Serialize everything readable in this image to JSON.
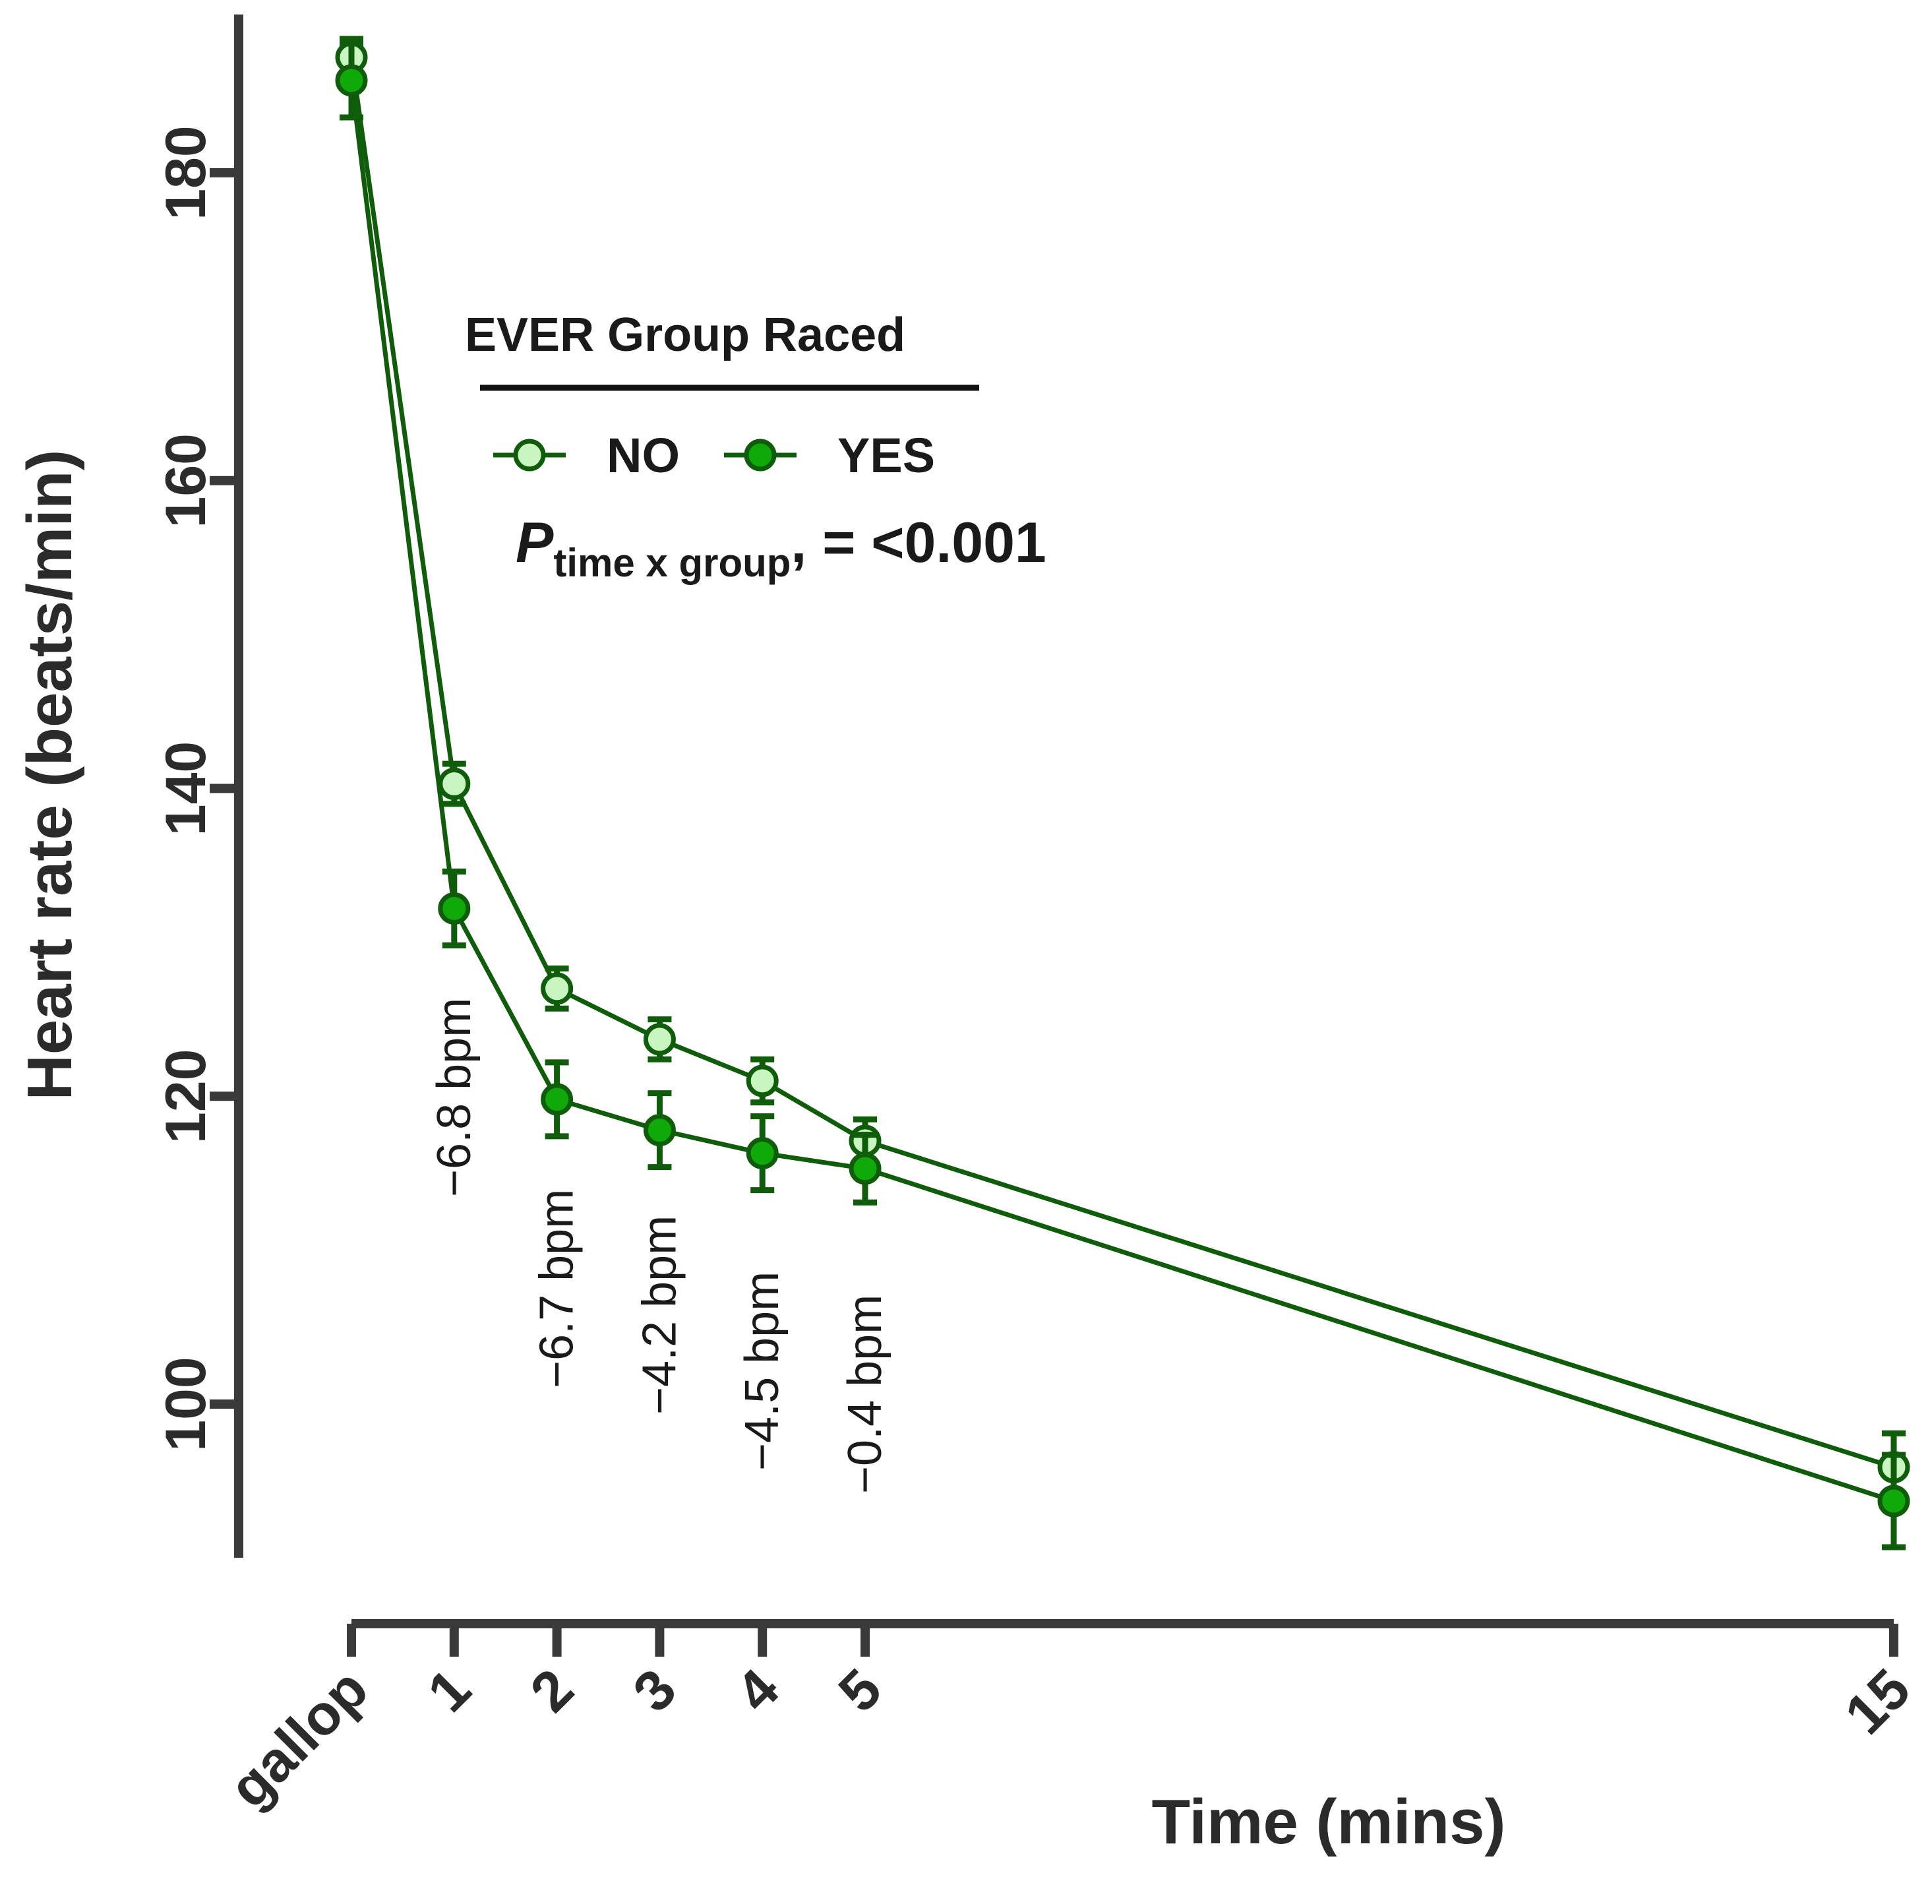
{
  "chart_data": {
    "type": "line",
    "title": "",
    "xlabel": "Time (mins)",
    "ylabel": "Heart rate (beats/min)",
    "categories": [
      "gallop",
      "1",
      "2",
      "3",
      "4",
      "5",
      "15"
    ],
    "x": [
      0,
      1,
      2,
      3,
      4,
      5,
      15
    ],
    "yticks": [
      100,
      120,
      140,
      160,
      180
    ],
    "ylim": [
      89,
      190
    ],
    "legend": {
      "title": "EVER Group Raced",
      "placement": "top-center"
    },
    "series": [
      {
        "name": "NO",
        "marker_fill": "#c8f5c0",
        "values": [
          187.5,
          140.3,
          127.0,
          123.7,
          121.0,
          117.1,
          95.9
        ],
        "errors": [
          1.2,
          1.3,
          1.3,
          1.3,
          1.4,
          1.4,
          2.2
        ]
      },
      {
        "name": "YES",
        "marker_fill": "#10a90a",
        "values": [
          186.0,
          132.2,
          119.8,
          117.8,
          116.3,
          115.3,
          93.7
        ],
        "errors": [
          2.4,
          2.4,
          2.4,
          2.4,
          2.4,
          2.2,
          3.0
        ]
      }
    ],
    "annotations": [
      {
        "x": 1,
        "text": "−6.8 bpm"
      },
      {
        "x": 2,
        "text": "−6.7 bpm"
      },
      {
        "x": 3,
        "text": "−4.2 bpm"
      },
      {
        "x": 4,
        "text": "−4.5 bpm"
      },
      {
        "x": 5,
        "text": "−0.4 bpm"
      }
    ],
    "stat": {
      "symbol": "P",
      "subscript": "time x group",
      "suffix": ", = <0.001"
    }
  }
}
